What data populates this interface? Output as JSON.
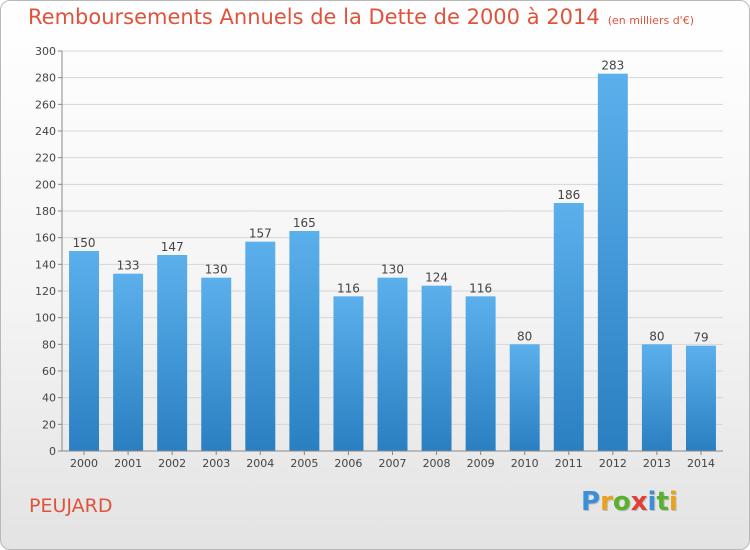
{
  "title": "Remboursements Annuels de la Dette de 2000 à 2014",
  "unit_note": "(en milliers d'€)",
  "city": "PEUJARD",
  "brand": {
    "letters": [
      "P",
      "r",
      "o",
      "x",
      "i",
      "t",
      "i"
    ],
    "colors": [
      "#3a8fd6",
      "#e8a21c",
      "#5ab031",
      "#e13f35",
      "#3a8fd6",
      "#5ab031",
      "#e8a21c"
    ]
  },
  "colors": {
    "title": "#e0523a",
    "bar_top": "#5bb0ec",
    "bar_bottom": "#2a7fc1",
    "grid": "#d6d6d6",
    "axis": "#888888"
  },
  "chart_data": {
    "type": "bar",
    "categories": [
      "2000",
      "2001",
      "2002",
      "2003",
      "2004",
      "2005",
      "2006",
      "2007",
      "2008",
      "2009",
      "2010",
      "2011",
      "2012",
      "2013",
      "2014"
    ],
    "values": [
      150,
      133,
      147,
      130,
      157,
      165,
      116,
      130,
      124,
      116,
      80,
      186,
      283,
      80,
      79
    ],
    "title": "Remboursements Annuels de la Dette de 2000 à 2014",
    "xlabel": "",
    "ylabel": "",
    "ylim": [
      0,
      300
    ],
    "yticks": [
      0,
      20,
      40,
      60,
      80,
      100,
      120,
      140,
      160,
      180,
      200,
      220,
      240,
      260,
      280,
      300
    ],
    "grid": true,
    "legend": "none"
  }
}
